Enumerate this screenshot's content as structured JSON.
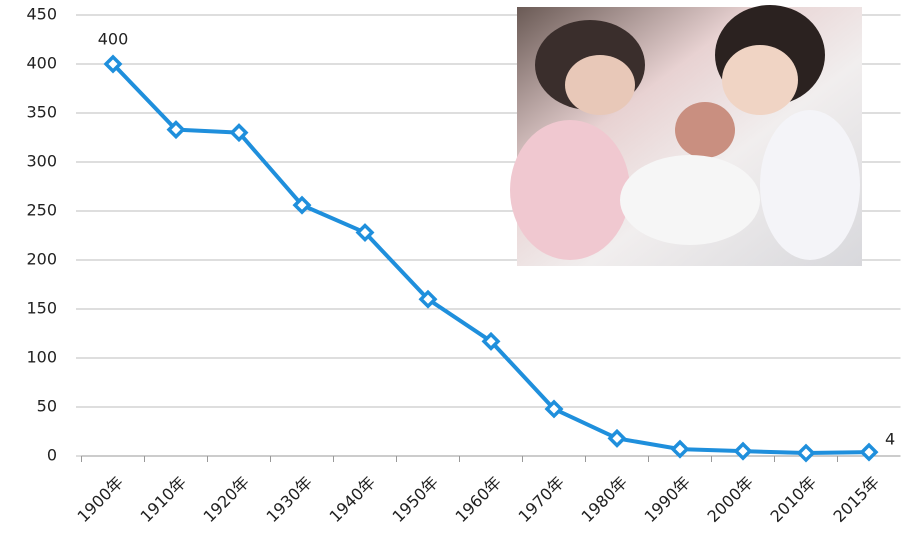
{
  "chart_data": {
    "type": "line",
    "categories": [
      "1900年",
      "1910年",
      "1920年",
      "1930年",
      "1940年",
      "1950年",
      "1960年",
      "1970年",
      "1980年",
      "1990年",
      "2000年",
      "2010年",
      "2015年"
    ],
    "values": [
      400,
      333,
      330,
      256,
      228,
      160,
      117,
      48,
      18,
      7,
      5,
      3,
      4
    ],
    "color": "#1f8fdc",
    "ylim": [
      0,
      450
    ],
    "yticks": [
      0,
      50,
      100,
      150,
      200,
      250,
      300,
      350,
      400,
      450
    ],
    "grid": true
  }
}
